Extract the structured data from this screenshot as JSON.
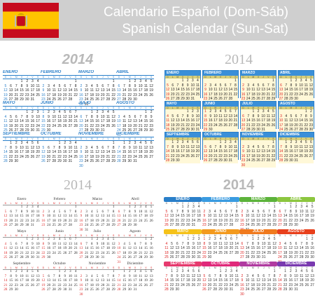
{
  "header": {
    "title_es": "Calendario Español (Dom-Sáb)",
    "title_en": "Spanish Calendar (Sun-Sat)",
    "flag_colors": [
      "#c60b1e",
      "#ffc400",
      "#c60b1e"
    ]
  },
  "year": "2014",
  "weekdays": [
    "D",
    "L",
    "M",
    "X",
    "J",
    "V",
    "S"
  ],
  "months_upper": [
    "ENERO",
    "FEBRERO",
    "MARZO",
    "ABRIL",
    "MAYO",
    "JUNIO",
    "JULIO",
    "AGOSTO",
    "SEPTIEMBRE",
    "OCTUBRE",
    "NOVIEMBRE",
    "DICIEMBRE"
  ],
  "months_title": [
    "Enero",
    "Febrero",
    "Marzo",
    "Abril",
    "Mayo",
    "Junio",
    "Julio",
    "Agosto",
    "Septiembre",
    "Octubre",
    "Noviembre",
    "Diciembre"
  ],
  "first_weekday": [
    3,
    6,
    6,
    2,
    4,
    0,
    2,
    5,
    1,
    3,
    6,
    1
  ],
  "days_in_month": [
    31,
    28,
    31,
    30,
    31,
    30,
    31,
    31,
    30,
    31,
    30,
    31
  ],
  "panel_colors": {
    "blue": "#2a7fc9",
    "red": "#d22222",
    "month_colors": [
      "#2a7fc9",
      "#3a9be0",
      "#5cb33b",
      "#8cc63f",
      "#f5c21a",
      "#f39a1e",
      "#f07a1e",
      "#e8401c",
      "#e63a6e",
      "#e0297a",
      "#b03aa0",
      "#7a3ab0"
    ]
  }
}
